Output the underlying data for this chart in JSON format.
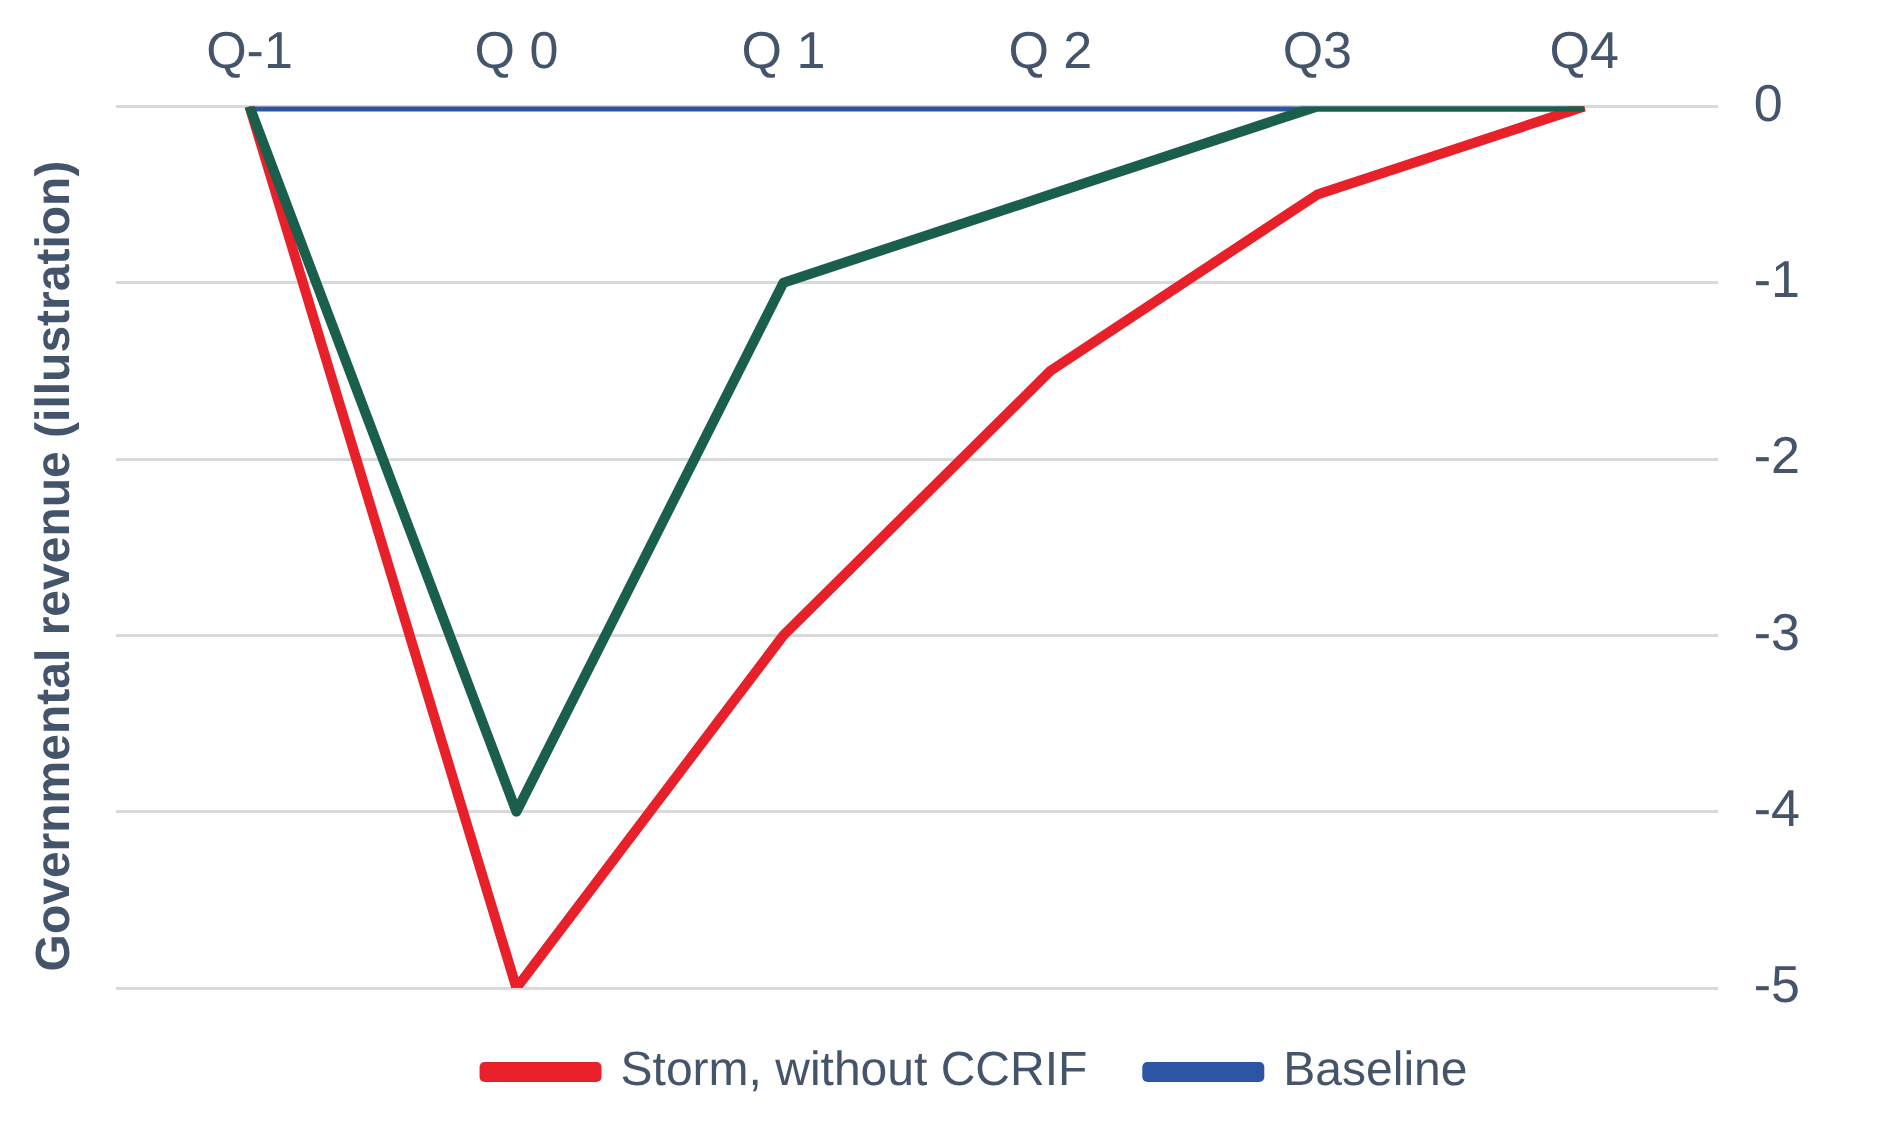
{
  "chart_data": {
    "type": "line",
    "ylabel": "Governmental revenue (illustration)",
    "categories": [
      "Q-1",
      "Q 0",
      "Q 1",
      "Q 2",
      "Q3",
      "Q4"
    ],
    "series": [
      {
        "name": "Baseline",
        "color": "#2e55a3",
        "values": [
          0,
          0,
          0,
          0,
          0,
          0
        ]
      },
      {
        "name": "Storm, without CCRIF",
        "color": "#e8202a",
        "values": [
          0,
          -5,
          -3,
          -1.5,
          -0.5,
          0
        ]
      },
      {
        "color": "#1a5e4c",
        "values": [
          0,
          -4,
          -1,
          -0.5,
          0,
          0
        ]
      }
    ],
    "ylim": [
      -5,
      0
    ],
    "yticks": [
      -5,
      -4,
      -3,
      -2,
      -1,
      0
    ],
    "grid": "y",
    "legend": "bottom",
    "marker": "none",
    "line_style": "solid"
  }
}
